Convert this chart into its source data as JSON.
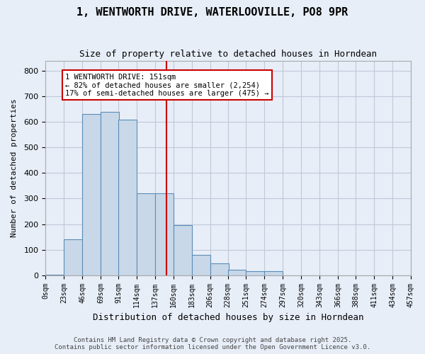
{
  "title": "1, WENTWORTH DRIVE, WATERLOOVILLE, PO8 9PR",
  "subtitle": "Size of property relative to detached houses in Horndean",
  "xlabel": "Distribution of detached houses by size in Horndean",
  "ylabel": "Number of detached properties",
  "footer_line1": "Contains HM Land Registry data © Crown copyright and database right 2025.",
  "footer_line2": "Contains public sector information licensed under the Open Government Licence v3.0.",
  "bin_labels": [
    "0sqm",
    "23sqm",
    "46sqm",
    "69sqm",
    "91sqm",
    "114sqm",
    "137sqm",
    "160sqm",
    "183sqm",
    "206sqm",
    "228sqm",
    "251sqm",
    "274sqm",
    "297sqm",
    "320sqm",
    "343sqm",
    "366sqm",
    "388sqm",
    "411sqm",
    "434sqm",
    "457sqm"
  ],
  "bin_edges": [
    0,
    23,
    46,
    69,
    91,
    114,
    137,
    160,
    183,
    206,
    228,
    251,
    274,
    297,
    320,
    343,
    366,
    388,
    411,
    434,
    457
  ],
  "bar_heights": [
    2,
    140,
    630,
    640,
    610,
    320,
    320,
    195,
    80,
    45,
    20,
    15,
    15,
    0,
    0,
    0,
    0,
    0,
    0,
    0
  ],
  "bar_color": "#c8d8e8",
  "bar_edgecolor": "#5b8db8",
  "grid_color": "#c0c8d8",
  "background_color": "#e8eef8",
  "vline_x": 151,
  "vline_color": "#cc0000",
  "annotation_text": "1 WENTWORTH DRIVE: 151sqm\n← 82% of detached houses are smaller (2,254)\n17% of semi-detached houses are larger (475) →",
  "annotation_box_color": "#ffffff",
  "annotation_box_edgecolor": "#cc0000",
  "ylim": [
    0,
    840
  ],
  "yticks": [
    0,
    100,
    200,
    300,
    400,
    500,
    600,
    700,
    800
  ]
}
